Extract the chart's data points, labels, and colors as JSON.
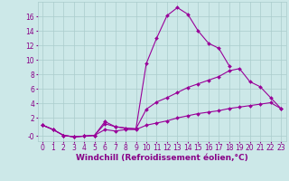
{
  "background_color": "#cce8e8",
  "line_color": "#990099",
  "marker": "D",
  "markersize": 2,
  "linewidth": 0.8,
  "grid_color": "#aacccc",
  "xlabel": "Windchill (Refroidissement éolien,°C)",
  "xlabel_fontsize": 6.5,
  "tick_fontsize": 5.5,
  "tick_color": "#880088",
  "label_color": "#880088",
  "ylim": [
    -1.2,
    18.0
  ],
  "xlim": [
    -0.5,
    23.5
  ],
  "yticks": [
    -0.5,
    2,
    4,
    6,
    8,
    10,
    12,
    14,
    16
  ],
  "ytick_labels": [
    "-0",
    "2",
    "4",
    "6",
    "8",
    "10",
    "12",
    "14",
    "16"
  ],
  "xticks": [
    0,
    1,
    2,
    3,
    4,
    5,
    6,
    7,
    8,
    9,
    10,
    11,
    12,
    13,
    14,
    15,
    16,
    17,
    18,
    19,
    20,
    21,
    22,
    23
  ],
  "curve1_x": [
    0,
    1,
    2,
    3,
    4,
    5,
    6,
    7,
    8,
    9,
    10,
    11,
    12,
    13,
    14,
    15,
    16,
    17,
    18
  ],
  "curve1_y": [
    1.0,
    0.4,
    -0.4,
    -0.6,
    -0.5,
    -0.4,
    1.5,
    0.8,
    0.6,
    0.5,
    9.5,
    13.0,
    16.1,
    17.2,
    16.3,
    14.0,
    12.3,
    11.6,
    9.2
  ],
  "curve2_x": [
    0,
    1,
    2,
    3,
    4,
    5,
    6,
    7,
    8,
    9,
    10,
    11,
    12,
    13,
    14,
    15,
    16,
    17,
    18,
    19,
    20,
    21,
    22,
    23
  ],
  "curve2_y": [
    1.0,
    0.4,
    -0.4,
    -0.6,
    -0.5,
    -0.4,
    1.2,
    0.8,
    0.6,
    0.5,
    3.2,
    4.2,
    4.8,
    5.5,
    6.2,
    6.7,
    7.2,
    7.7,
    8.5,
    8.8,
    7.0,
    6.3,
    4.8,
    3.3
  ],
  "curve3_x": [
    0,
    1,
    2,
    3,
    4,
    5,
    6,
    7,
    8,
    9,
    10,
    11,
    12,
    13,
    14,
    15,
    16,
    17,
    18,
    19,
    20,
    21,
    22,
    23
  ],
  "curve3_y": [
    1.0,
    0.4,
    -0.4,
    -0.6,
    -0.5,
    -0.4,
    0.4,
    0.2,
    0.4,
    0.4,
    1.0,
    1.3,
    1.6,
    2.0,
    2.3,
    2.6,
    2.8,
    3.0,
    3.3,
    3.5,
    3.7,
    3.9,
    4.1,
    3.3
  ]
}
